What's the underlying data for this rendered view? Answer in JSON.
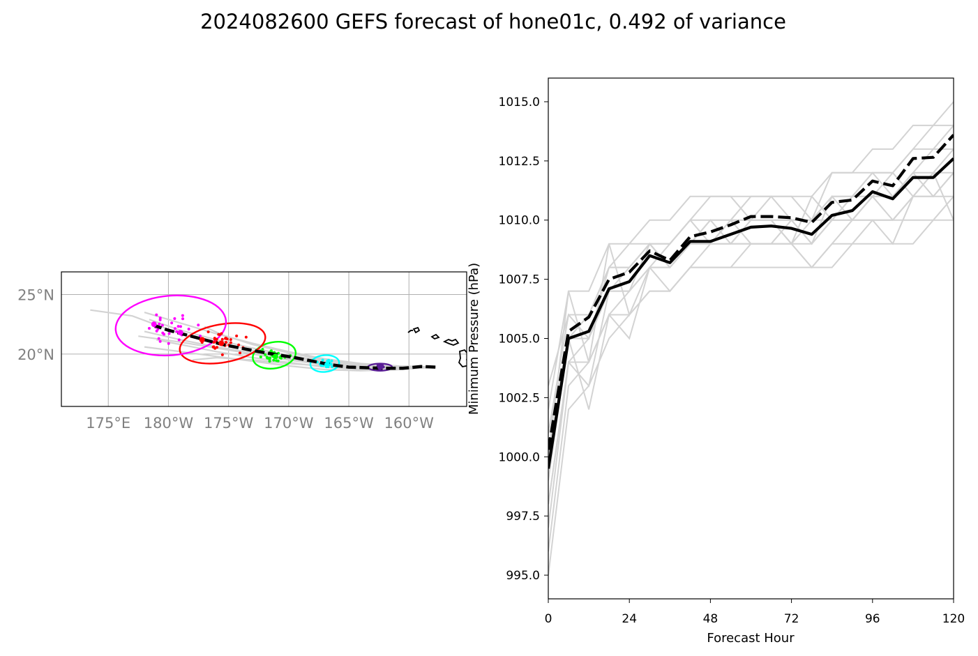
{
  "figure": {
    "title": "2024082600 GEFS forecast of hone01c, 0.492 of variance"
  },
  "chart_data": [
    {
      "type": "map",
      "projection": "lon-lat",
      "lon_ticks": [
        {
          "lon": 175,
          "label": "175°E"
        },
        {
          "lon": 180,
          "label": "180°W"
        },
        {
          "lon": 185,
          "label": "175°W"
        },
        {
          "lon": 190,
          "label": "170°W"
        },
        {
          "lon": 195,
          "label": "165°W"
        },
        {
          "lon": 200,
          "label": "160°W"
        }
      ],
      "lat_ticks": [
        {
          "lat": 20,
          "label": "20°N"
        },
        {
          "lat": 25,
          "label": "25°N"
        }
      ],
      "xlim": [
        171.1,
        204.8
      ],
      "ylim": [
        15.6,
        26.9
      ],
      "grid": true,
      "mean_track": [
        [
          202.2,
          18.9
        ],
        [
          201.0,
          18.95
        ],
        [
          199.5,
          18.8
        ],
        [
          198.0,
          18.8
        ],
        [
          196.5,
          18.85
        ],
        [
          195.0,
          18.9
        ],
        [
          193.5,
          19.1
        ],
        [
          192.0,
          19.4
        ],
        [
          190.5,
          19.7
        ],
        [
          189.0,
          19.95
        ],
        [
          187.5,
          20.2
        ],
        [
          186.0,
          20.5
        ],
        [
          184.5,
          20.8
        ],
        [
          183.0,
          21.2
        ],
        [
          181.5,
          21.6
        ],
        [
          180.0,
          22.0
        ],
        [
          178.8,
          22.4
        ]
      ],
      "ensemble_tracks": [
        [
          [
            202.2,
            18.9
          ],
          [
            199.0,
            18.7
          ],
          [
            196.0,
            18.6
          ],
          [
            193.0,
            18.7
          ],
          [
            190.0,
            19.0
          ],
          [
            187.0,
            19.4
          ],
          [
            184.0,
            19.8
          ],
          [
            181.0,
            20.2
          ],
          [
            178.0,
            20.6
          ]
        ],
        [
          [
            202.2,
            18.9
          ],
          [
            199.0,
            18.8
          ],
          [
            196.0,
            18.9
          ],
          [
            193.0,
            19.2
          ],
          [
            190.0,
            19.6
          ],
          [
            187.0,
            20.1
          ],
          [
            184.0,
            20.6
          ],
          [
            181.0,
            21.2
          ],
          [
            178.0,
            21.9
          ]
        ],
        [
          [
            202.2,
            18.9
          ],
          [
            199.0,
            18.9
          ],
          [
            196.0,
            19.0
          ],
          [
            193.0,
            19.4
          ],
          [
            190.0,
            19.9
          ],
          [
            187.0,
            20.5
          ],
          [
            184.0,
            21.2
          ],
          [
            181.0,
            22.0
          ],
          [
            178.4,
            22.9
          ]
        ],
        [
          [
            202.2,
            18.9
          ],
          [
            199.0,
            19.0
          ],
          [
            196.0,
            19.2
          ],
          [
            193.0,
            19.6
          ],
          [
            190.0,
            20.2
          ],
          [
            187.0,
            20.9
          ],
          [
            184.0,
            21.7
          ],
          [
            181.0,
            22.6
          ],
          [
            178.0,
            23.5
          ]
        ],
        [
          [
            202.2,
            18.9
          ],
          [
            199.0,
            18.8
          ],
          [
            196.0,
            18.8
          ],
          [
            193.0,
            19.1
          ],
          [
            190.0,
            19.5
          ],
          [
            187.0,
            20.0
          ],
          [
            184.0,
            20.5
          ],
          [
            181.0,
            21.0
          ],
          [
            177.5,
            21.5
          ]
        ],
        [
          [
            202.2,
            18.9
          ],
          [
            199.0,
            18.7
          ],
          [
            196.0,
            18.7
          ],
          [
            193.0,
            18.9
          ],
          [
            190.0,
            19.3
          ],
          [
            187.0,
            19.7
          ],
          [
            184.0,
            20.2
          ],
          [
            181.0,
            20.8
          ],
          [
            179.0,
            21.2
          ]
        ],
        [
          [
            202.2,
            18.9
          ],
          [
            199.0,
            18.9
          ],
          [
            196.0,
            19.1
          ],
          [
            193.0,
            19.5
          ],
          [
            190.0,
            20.1
          ],
          [
            187.0,
            20.8
          ],
          [
            184.5,
            21.6
          ],
          [
            183.0,
            22.3
          ]
        ],
        [
          [
            202.2,
            18.9
          ],
          [
            199.0,
            18.8
          ],
          [
            196.0,
            18.9
          ],
          [
            193.0,
            19.3
          ],
          [
            190.0,
            19.8
          ],
          [
            187.0,
            20.3
          ],
          [
            184.0,
            21.0
          ],
          [
            181.0,
            21.7
          ],
          [
            177.0,
            23.2
          ],
          [
            173.5,
            23.7
          ]
        ],
        [
          [
            202.2,
            18.9
          ],
          [
            199.0,
            18.8
          ],
          [
            196.0,
            18.8
          ],
          [
            193.0,
            19.0
          ],
          [
            190.0,
            19.2
          ],
          [
            187.0,
            19.5
          ],
          [
            184.0,
            19.7
          ],
          [
            182.0,
            19.5
          ]
        ]
      ],
      "uncertainty_ellipses": [
        {
          "color": "#5a1e96",
          "center": [
            197.6,
            18.9
          ],
          "rx_deg": 1.0,
          "ry_deg": 0.3,
          "angle": 0
        },
        {
          "color": "#00ffff",
          "center": [
            193.0,
            19.2
          ],
          "rx_deg": 1.2,
          "ry_deg": 0.7,
          "angle": -5
        },
        {
          "color": "#00ff00",
          "center": [
            188.8,
            19.9
          ],
          "rx_deg": 1.8,
          "ry_deg": 1.1,
          "angle": -10
        },
        {
          "color": "#ff0000",
          "center": [
            184.5,
            20.9
          ],
          "rx_deg": 3.6,
          "ry_deg": 1.6,
          "angle": -10
        },
        {
          "color": "#ff00ff",
          "center": [
            180.2,
            22.4
          ],
          "rx_deg": 4.6,
          "ry_deg": 2.5,
          "angle": -5
        }
      ],
      "scatter_points": [
        {
          "color": "#5a1e96",
          "center": [
            197.6,
            18.9
          ],
          "spread": [
            0.6,
            0.3
          ],
          "n": 30
        },
        {
          "color": "#00ffff",
          "center": [
            193.0,
            19.2
          ],
          "spread": [
            1.0,
            0.4
          ],
          "n": 30
        },
        {
          "color": "#00ff00",
          "center": [
            188.8,
            19.9
          ],
          "spread": [
            1.5,
            0.8
          ],
          "n": 30
        },
        {
          "color": "#ff0000",
          "center": [
            184.5,
            20.9
          ],
          "spread": [
            2.6,
            1.2
          ],
          "n": 30
        },
        {
          "color": "#ff00ff",
          "center": [
            180.2,
            22.4
          ],
          "spread": [
            3.2,
            1.6
          ],
          "n": 30
        }
      ],
      "mean_positions": [
        {
          "color": "#5a1e96",
          "pos": [
            197.6,
            18.9
          ]
        },
        {
          "color": "#00ffff",
          "pos": [
            193.2,
            19.1
          ]
        },
        {
          "color": "#00ff00",
          "pos": [
            188.9,
            19.8
          ]
        },
        {
          "color": "#ff0000",
          "pos": [
            184.4,
            20.9
          ]
        },
        {
          "color": "#ff0000",
          "pos": [
            182.8,
            21.2
          ]
        },
        {
          "color": "#ff00ff",
          "pos": [
            181.0,
            21.8
          ]
        },
        {
          "color": "#ff00ff",
          "pos": [
            178.8,
            22.5
          ]
        }
      ]
    },
    {
      "type": "line",
      "xlabel": "Forecast Hour",
      "ylabel": "Minimum Pressure (hPa)",
      "xlim": [
        0,
        120
      ],
      "ylim": [
        994.0,
        1016.0
      ],
      "xticks": [
        0,
        24,
        48,
        72,
        96,
        120
      ],
      "xtick_labels": [
        "0",
        "24",
        "48",
        "72",
        "96",
        "120"
      ],
      "yticks": [
        995.0,
        997.5,
        1000.0,
        1002.5,
        1005.0,
        1007.5,
        1010.0,
        1012.5,
        1015.0
      ],
      "ytick_labels": [
        "995.0",
        "997.5",
        "1000.0",
        "1002.5",
        "1005.0",
        "1007.5",
        "1010.0",
        "1012.5",
        "1015.0"
      ],
      "x": [
        0,
        6,
        12,
        18,
        24,
        30,
        36,
        42,
        48,
        54,
        60,
        66,
        72,
        78,
        84,
        90,
        96,
        102,
        108,
        114,
        120
      ],
      "series": [
        {
          "style": "solid-black",
          "values": [
            999.5,
            1005.0,
            1005.3,
            1007.1,
            1007.4,
            1008.5,
            1008.2,
            1009.1,
            1009.1,
            1009.4,
            1009.7,
            1009.75,
            1009.65,
            1009.4,
            1010.2,
            1010.4,
            1011.2,
            1010.9,
            1011.8,
            1011.8,
            1012.6
          ]
        },
        {
          "style": "dashed-black",
          "values": [
            1000.3,
            1005.3,
            1005.9,
            1007.5,
            1007.8,
            1008.7,
            1008.3,
            1009.3,
            1009.5,
            1009.8,
            1010.15,
            1010.15,
            1010.1,
            1009.9,
            1010.75,
            1010.85,
            1011.65,
            1011.45,
            1012.6,
            1012.65,
            1013.6
          ]
        }
      ],
      "ensemble_members": [
        [
          1002,
          1007,
          1007,
          1009,
          1009,
          1010,
          1010,
          1011,
          1011,
          1011,
          1011,
          1011,
          1011,
          1011,
          1012,
          1012,
          1013,
          1013,
          1014,
          1014,
          1015
        ],
        [
          1001,
          1006,
          1006,
          1008,
          1009,
          1009,
          1009,
          1010,
          1010,
          1010,
          1011,
          1011,
          1011,
          1010,
          1011,
          1011,
          1012,
          1012,
          1013,
          1013,
          1014
        ],
        [
          1000,
          1005,
          1006,
          1008,
          1008,
          1009,
          1008,
          1009,
          1010,
          1010,
          1010,
          1010,
          1010,
          1010,
          1011,
          1011,
          1012,
          1011,
          1012,
          1013,
          1013
        ],
        [
          999,
          1005,
          1005,
          1007,
          1008,
          1009,
          1008,
          1009,
          1009,
          1010,
          1010,
          1010,
          1010,
          1009,
          1010,
          1011,
          1011,
          1011,
          1012,
          1012,
          1013
        ],
        [
          998,
          1004,
          1005,
          1007,
          1007,
          1008,
          1008,
          1009,
          1009,
          1009,
          1010,
          1010,
          1009,
          1009,
          1010,
          1010,
          1011,
          1010,
          1011,
          1012,
          1012
        ],
        [
          997,
          1004,
          1004,
          1006,
          1007,
          1008,
          1007,
          1008,
          1009,
          1009,
          1009,
          1009,
          1009,
          1008,
          1009,
          1010,
          1010,
          1010,
          1011,
          1011,
          1011
        ],
        [
          996,
          1003,
          1004,
          1006,
          1006,
          1007,
          1007,
          1008,
          1008,
          1008,
          1009,
          1009,
          1009,
          1008,
          1009,
          1009,
          1010,
          1010,
          1010,
          1010,
          1011
        ],
        [
          995,
          1002,
          1003,
          1005,
          1006,
          1007,
          1007,
          1008,
          1008,
          1008,
          1008,
          1008,
          1008,
          1008,
          1008,
          1009,
          1009,
          1009,
          1009,
          1010,
          1010
        ],
        [
          1003,
          1006,
          1005,
          1008,
          1008,
          1009,
          1009,
          1010,
          1011,
          1011,
          1010,
          1011,
          1010,
          1010,
          1012,
          1012,
          1012,
          1012,
          1013,
          1014,
          1014
        ],
        [
          1001,
          1005,
          1002,
          1006,
          1005,
          1008,
          1008,
          1009,
          1010,
          1009,
          1009,
          1009,
          1010,
          1009,
          1011,
          1010,
          1011,
          1011,
          1012,
          1011,
          1012
        ],
        [
          1000,
          1007,
          1004,
          1009,
          1006,
          1008,
          1009,
          1010,
          1009,
          1009,
          1010,
          1010,
          1009,
          1011,
          1010,
          1011,
          1011,
          1012,
          1011,
          1012,
          1010
        ],
        [
          998,
          1004,
          1003,
          1007,
          1007,
          1009,
          1008,
          1009,
          1009,
          1010,
          1009,
          1009,
          1009,
          1010,
          1010,
          1010,
          1010,
          1009,
          1011,
          1011,
          1012
        ]
      ]
    }
  ]
}
